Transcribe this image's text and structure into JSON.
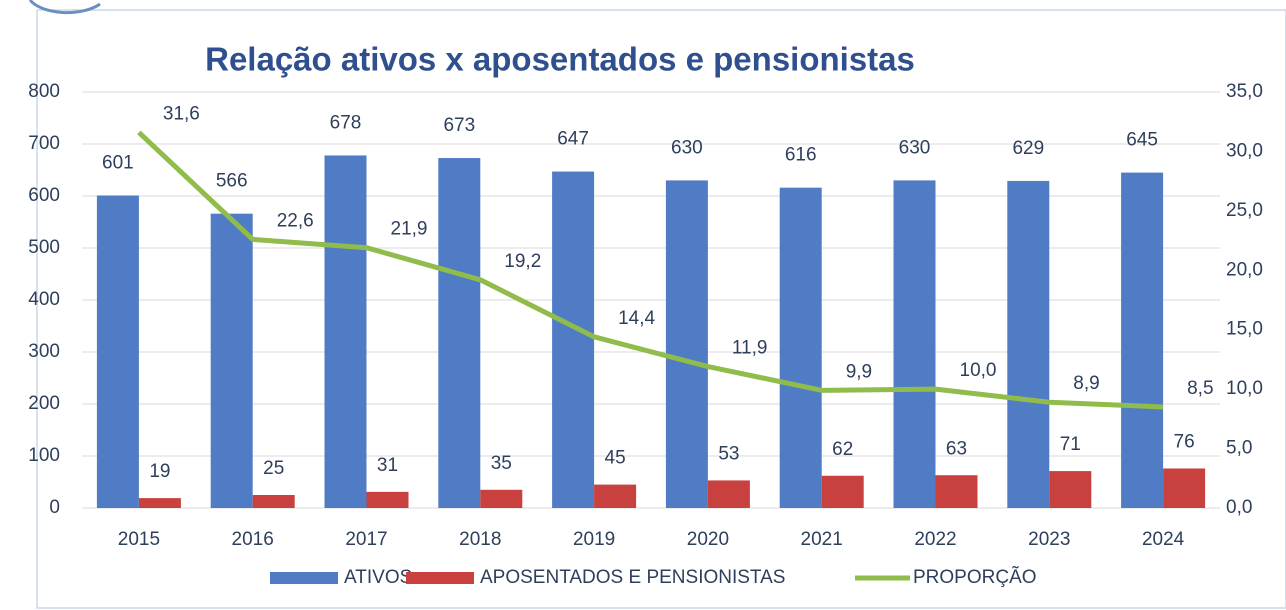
{
  "chart_data": {
    "type": "bar",
    "title": "Relação ativos x aposentados e pensionistas",
    "categories": [
      "2015",
      "2016",
      "2017",
      "2018",
      "2019",
      "2020",
      "2021",
      "2022",
      "2023",
      "2024"
    ],
    "series": [
      {
        "name": "ATIVOS",
        "color": "#4f7cc4",
        "values": [
          601,
          566,
          678,
          673,
          647,
          630,
          616,
          630,
          629,
          645
        ]
      },
      {
        "name": "APOSENTADOS E PENSIONISTAS",
        "color": "#c8413e",
        "values": [
          19,
          25,
          31,
          35,
          45,
          53,
          62,
          63,
          71,
          76
        ]
      },
      {
        "name": "PROPORÇÃO",
        "color": "#8fbc4a",
        "type": "line",
        "axis": "y2",
        "values": [
          31.6,
          22.6,
          21.9,
          19.2,
          14.4,
          11.9,
          9.9,
          10.0,
          8.9,
          8.5
        ],
        "value_labels": [
          "31,6",
          "22,6",
          "21,9",
          "19,2",
          "14,4",
          "11,9",
          "9,9",
          "10,0",
          "8,9",
          "8,5"
        ]
      }
    ],
    "ylim": [
      0,
      800
    ],
    "yticks": [
      0,
      100,
      200,
      300,
      400,
      500,
      600,
      700,
      800
    ],
    "y2lim": [
      0,
      35
    ],
    "y2ticks": [
      {
        "value": 0,
        "label": "0,0"
      },
      {
        "value": 5,
        "label": "5,0"
      },
      {
        "value": 10,
        "label": "10,0"
      },
      {
        "value": 15,
        "label": "15,0"
      },
      {
        "value": 20,
        "label": "20,0"
      },
      {
        "value": 25,
        "label": "25,0"
      },
      {
        "value": 30,
        "label": "30,0"
      },
      {
        "value": 35,
        "label": "35,0"
      }
    ],
    "grid": true,
    "legend": "bottom"
  }
}
